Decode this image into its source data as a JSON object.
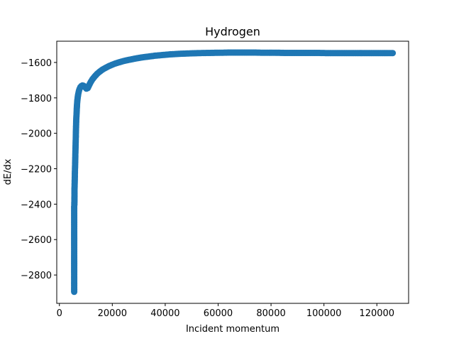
{
  "chart_data": {
    "type": "scatter",
    "title": "Hydrogen",
    "xlabel": "Incident momentum",
    "ylabel": "dE/dx",
    "xlim": [
      -1000,
      132000
    ],
    "ylim": [
      -2960,
      -1480
    ],
    "xticks": [
      0,
      20000,
      40000,
      60000,
      80000,
      100000,
      120000
    ],
    "xtick_labels": [
      "0",
      "20000",
      "40000",
      "60000",
      "80000",
      "100000",
      "120000"
    ],
    "yticks": [
      -2800,
      -2600,
      -2400,
      -2200,
      -2000,
      -1800,
      -1600
    ],
    "ytick_labels": [
      "−2800",
      "−2600",
      "−2400",
      "−2200",
      "−2000",
      "−1800",
      "−1600"
    ],
    "grid": false,
    "marker_color": "#1f77b4",
    "series": [
      {
        "points": [
          [
            5600,
            -2895
          ],
          [
            5600,
            -2805
          ],
          [
            5600,
            -2512
          ],
          [
            5600,
            -2452
          ],
          [
            5600,
            -2412
          ],
          [
            5650,
            -2405
          ],
          [
            5700,
            -2350
          ],
          [
            5700,
            -2320
          ],
          [
            5750,
            -2300
          ],
          [
            5800,
            -2260
          ],
          [
            5850,
            -2230
          ],
          [
            5900,
            -2200
          ],
          [
            5950,
            -2170
          ],
          [
            6000,
            -2140
          ],
          [
            6050,
            -2110
          ],
          [
            6100,
            -2080
          ],
          [
            6150,
            -2050
          ],
          [
            6200,
            -2020
          ],
          [
            6250,
            -1990
          ],
          [
            6300,
            -1960
          ],
          [
            6350,
            -1930
          ],
          [
            6450,
            -1900
          ],
          [
            6550,
            -1870
          ],
          [
            6650,
            -1845
          ],
          [
            6750,
            -1820
          ],
          [
            6900,
            -1800
          ],
          [
            7100,
            -1780
          ],
          [
            7300,
            -1765
          ],
          [
            7600,
            -1750
          ],
          [
            7900,
            -1740
          ],
          [
            8300,
            -1733
          ],
          [
            8700,
            -1730
          ],
          [
            9200,
            -1732
          ],
          [
            9700,
            -1740
          ],
          [
            10200,
            -1748
          ],
          [
            10700,
            -1745
          ],
          [
            11200,
            -1730
          ],
          [
            11800,
            -1712
          ],
          [
            12500,
            -1695
          ],
          [
            13300,
            -1680
          ],
          [
            14200,
            -1665
          ],
          [
            15200,
            -1652
          ],
          [
            16300,
            -1640
          ],
          [
            17500,
            -1630
          ],
          [
            18800,
            -1620
          ],
          [
            20200,
            -1611
          ],
          [
            21700,
            -1603
          ],
          [
            23300,
            -1596
          ],
          [
            25000,
            -1589
          ],
          [
            27000,
            -1583
          ],
          [
            29000,
            -1577
          ],
          [
            31000,
            -1572
          ],
          [
            33500,
            -1567
          ],
          [
            36000,
            -1562
          ],
          [
            39000,
            -1558
          ],
          [
            42000,
            -1554
          ],
          [
            45500,
            -1551
          ],
          [
            49000,
            -1549
          ],
          [
            53000,
            -1547
          ],
          [
            57000,
            -1546
          ],
          [
            61000,
            -1545
          ],
          [
            65000,
            -1544
          ],
          [
            69000,
            -1544
          ],
          [
            73000,
            -1544
          ],
          [
            77000,
            -1545
          ],
          [
            81000,
            -1545
          ],
          [
            85000,
            -1546
          ],
          [
            89000,
            -1546
          ],
          [
            93000,
            -1546
          ],
          [
            97000,
            -1546
          ],
          [
            101000,
            -1547
          ],
          [
            105000,
            -1547
          ],
          [
            109000,
            -1547
          ],
          [
            113000,
            -1547
          ],
          [
            117000,
            -1547
          ],
          [
            121000,
            -1547
          ],
          [
            124000,
            -1547
          ],
          [
            126000,
            -1547
          ]
        ]
      }
    ]
  }
}
